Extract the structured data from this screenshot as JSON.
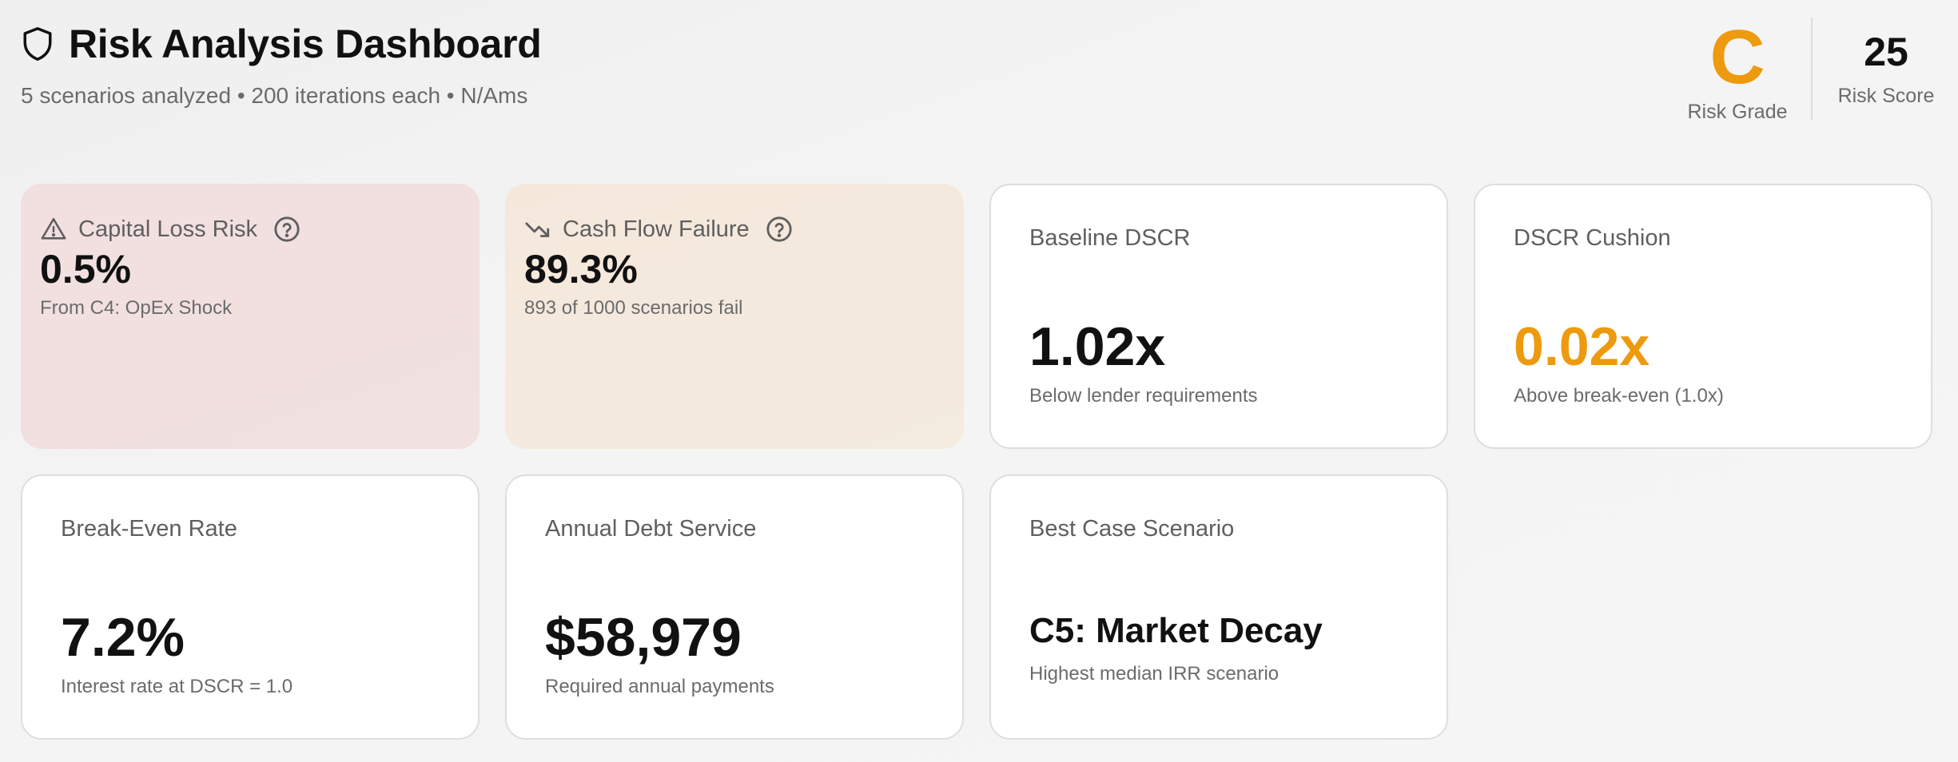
{
  "header": {
    "title": "Risk Analysis Dashboard",
    "subtitle": "5 scenarios analyzed • 200 iterations each • N/Ams",
    "title_icon": "shield-icon"
  },
  "risk_grade": {
    "value": "C",
    "label": "Risk Grade",
    "color": "#ee9a0e"
  },
  "risk_score": {
    "value": "25",
    "label": "Risk Score"
  },
  "cards": {
    "capital_loss": {
      "label": "Capital Loss Risk",
      "value": "0.5%",
      "sub": "From C4: OpEx Shock",
      "icon": "warning-triangle-icon",
      "help_icon": "help-circle-icon",
      "bg": "#f2dfdf"
    },
    "cash_flow": {
      "label": "Cash Flow Failure",
      "value": "89.3%",
      "sub": "893 of 1000 scenarios fail",
      "icon": "trend-down-icon",
      "help_icon": "help-circle-icon",
      "bg": "#f5e8db"
    },
    "baseline_dscr": {
      "label": "Baseline DSCR",
      "value": "1.02x",
      "sub": "Below lender requirements"
    },
    "dscr_cushion": {
      "label": "DSCR Cushion",
      "value": "0.02x",
      "sub": "Above break-even (1.0x)",
      "value_color": "#ee9a0e"
    },
    "break_even": {
      "label": "Break-Even Rate",
      "value": "7.2%",
      "sub": "Interest rate at DSCR = 1.0"
    },
    "debt_service": {
      "label": "Annual Debt Service",
      "value": "$58,979",
      "sub": "Required annual payments"
    },
    "best_case": {
      "label": "Best Case Scenario",
      "value": "C5: Market Decay",
      "sub": "Highest median IRR scenario"
    }
  }
}
